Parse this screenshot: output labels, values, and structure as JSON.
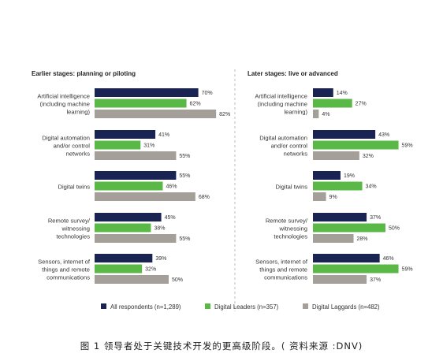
{
  "caption": "图 1 领导者处于关键技术开发的更高级阶段。( 资料来源 :DNV)",
  "colors": {
    "all": "#1a2452",
    "leaders": "#5ab946",
    "laggards": "#a59f9a",
    "divider": "#bdbdbd"
  },
  "chart_data": [
    {
      "type": "bar",
      "orientation": "horizontal",
      "title": "Earlier stages: planning or piloting",
      "categories": [
        "Artificial intelligence (including machine learning)",
        "Digital automation and/or control networks",
        "Digital twins",
        "Remote survey/ witnessing technologies",
        "Sensors, internet of things and remote communications"
      ],
      "category_lines": [
        [
          "Artificial intelligence",
          "(including machine",
          "learning)"
        ],
        [
          "Digital automation",
          "and/or control",
          "networks"
        ],
        [
          "Digital twins"
        ],
        [
          "Remote survey/",
          "witnessing",
          "technologies"
        ],
        [
          "Sensors, internet of",
          "things and remote",
          "communications"
        ]
      ],
      "unit": "%",
      "xlim": [
        0,
        100
      ],
      "series": [
        {
          "name": "All respondents (n=1,289)",
          "values": [
            70,
            41,
            55,
            45,
            39
          ]
        },
        {
          "name": "Digital Leaders (n=357)",
          "values": [
            62,
            31,
            46,
            38,
            32
          ]
        },
        {
          "name": "Digital Laggards (n=482)",
          "values": [
            82,
            55,
            68,
            55,
            50
          ]
        }
      ]
    },
    {
      "type": "bar",
      "orientation": "horizontal",
      "title": "Later stages: live or advanced",
      "categories": [
        "Artificial intelligence (including machine learning)",
        "Digital automation and/or control networks",
        "Digital twins",
        "Remote survey/ witnessing technologies",
        "Sensors, internet of things and remote communications"
      ],
      "category_lines": [
        [
          "Artificial intelligence",
          "(including machine",
          "learning)"
        ],
        [
          "Digital automation",
          "and/or control",
          "networks"
        ],
        [
          "Digital twins"
        ],
        [
          "Remote survey/",
          "witnessing",
          "technologies"
        ],
        [
          "Sensors, internet of",
          "things and remote",
          "communications"
        ]
      ],
      "unit": "%",
      "xlim": [
        0,
        100
      ],
      "series": [
        {
          "name": "All respondents (n=1,289)",
          "values": [
            14,
            43,
            19,
            37,
            46
          ]
        },
        {
          "name": "Digital Leaders (n=357)",
          "values": [
            27,
            59,
            34,
            50,
            59
          ]
        },
        {
          "name": "Digital Laggards (n=482)",
          "values": [
            4,
            32,
            9,
            28,
            37
          ]
        }
      ]
    }
  ],
  "legend": [
    {
      "label": "All respondents (n=1,289)",
      "color_key": "all"
    },
    {
      "label": "Digital Leaders (n=357)",
      "color_key": "leaders"
    },
    {
      "label": "Digital Laggards (n=482)",
      "color_key": "laggards"
    }
  ]
}
